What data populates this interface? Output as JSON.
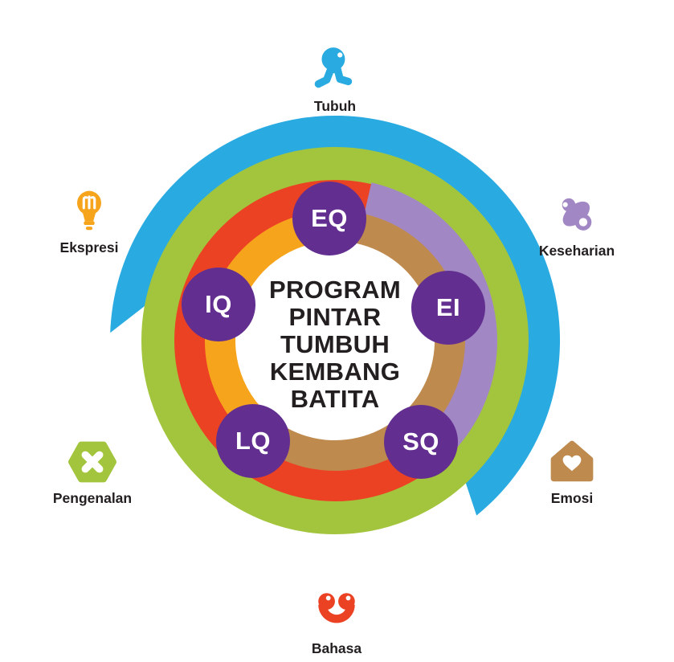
{
  "palette": {
    "blue": "#29ABE2",
    "green": "#A3C53D",
    "red": "#EC4224",
    "orange": "#F7A41D",
    "tan": "#BE8A4E",
    "lavender": "#A287C5",
    "bubble_purple": "#622F90",
    "text_dark": "#231F20",
    "white": "#FFFFFF"
  },
  "center": {
    "lines": [
      "PROGRAM",
      "PINTAR",
      "TUMBUH",
      "KEMBANG",
      "BATITA"
    ]
  },
  "bubbles": [
    {
      "label": "EQ"
    },
    {
      "label": "IQ"
    },
    {
      "label": "EI"
    },
    {
      "label": "LQ"
    },
    {
      "label": "SQ"
    }
  ],
  "satellites": [
    {
      "label": "Tubuh",
      "icon": "body-icon",
      "color_key": "blue"
    },
    {
      "label": "Keseharian",
      "icon": "pacifier-icon",
      "color_key": "lavender"
    },
    {
      "label": "Emosi",
      "icon": "house-heart-icon",
      "color_key": "tan"
    },
    {
      "label": "Bahasa",
      "icon": "smile-face-icon",
      "color_key": "red"
    },
    {
      "label": "Pengenalan",
      "icon": "hexagon-x-icon",
      "color_key": "green"
    },
    {
      "label": "Ekspresi",
      "icon": "lightbulb-icon",
      "color_key": "orange"
    }
  ]
}
